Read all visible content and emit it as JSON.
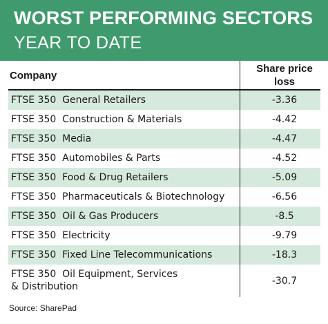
{
  "header": {
    "title": "WORST PERFORMING SECTORS",
    "subtitle": "YEAR TO DATE",
    "background_color": "#3f9b6e"
  },
  "table": {
    "columns": {
      "company": "Company",
      "share_price_loss": "Share price loss"
    },
    "rows": [
      {
        "company": "FTSE 350  General Retailers",
        "value": "-3.36"
      },
      {
        "company": "FTSE 350  Construction & Materials",
        "value": "-4.42"
      },
      {
        "company": "FTSE 350  Media",
        "value": "-4.47"
      },
      {
        "company": "FTSE 350  Automobiles & Parts",
        "value": "-4.52"
      },
      {
        "company": "FTSE 350  Food & Drug Retailers",
        "value": "-5.09"
      },
      {
        "company": "FTSE 350  Pharmaceuticals & Biotechnology",
        "value": "-6.56"
      },
      {
        "company": "FTSE 350  Oil & Gas Producers",
        "value": "-8.5"
      },
      {
        "company": "FTSE 350  Electricity",
        "value": "-9.79"
      },
      {
        "company": "FTSE 350  Fixed Line Telecommunications",
        "value": "-18.3"
      },
      {
        "company": "FTSE 350  Oil Equipment, Services\n& Distribution",
        "value": "-30.7"
      }
    ],
    "stripe_color": "#d6e9dd"
  },
  "source": "Source: SharePad"
}
